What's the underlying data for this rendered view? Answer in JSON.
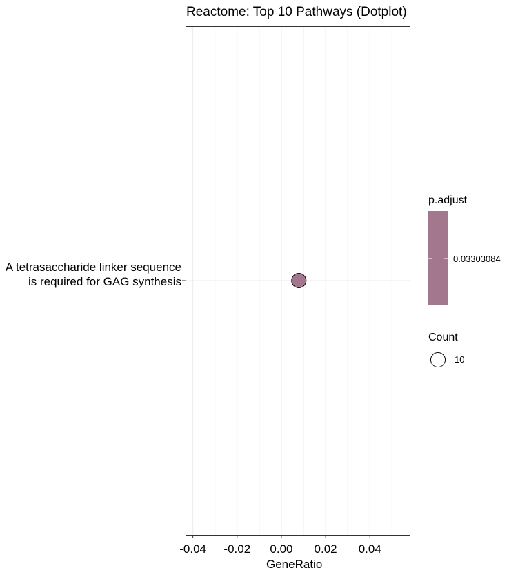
{
  "chart_data": {
    "type": "scatter",
    "title": "Reactome: Top 10 Pathways (Dotplot)",
    "xlabel": "GeneRatio",
    "ylabel": "",
    "xlim": [
      -0.043,
      0.058
    ],
    "x_ticks": [
      -0.04,
      -0.02,
      0.0,
      0.02,
      0.04
    ],
    "x_tick_labels": [
      "-0.04",
      "-0.02",
      "0.00",
      "0.02",
      "0.04"
    ],
    "grid": true,
    "categories": [
      "A tetrasaccharide linker sequence is required for GAG synthesis"
    ],
    "points": [
      {
        "category": "A tetrasaccharide linker sequence is required for GAG synthesis",
        "x": 0.0079,
        "count": 10,
        "p_adjust": 0.03303084,
        "color": "#a3788f"
      }
    ],
    "legend": {
      "placement": "right",
      "color_title": "p.adjust",
      "color_label": "0.03303084",
      "color": "#a3788f",
      "size_title": "Count",
      "size_label": "10"
    }
  }
}
